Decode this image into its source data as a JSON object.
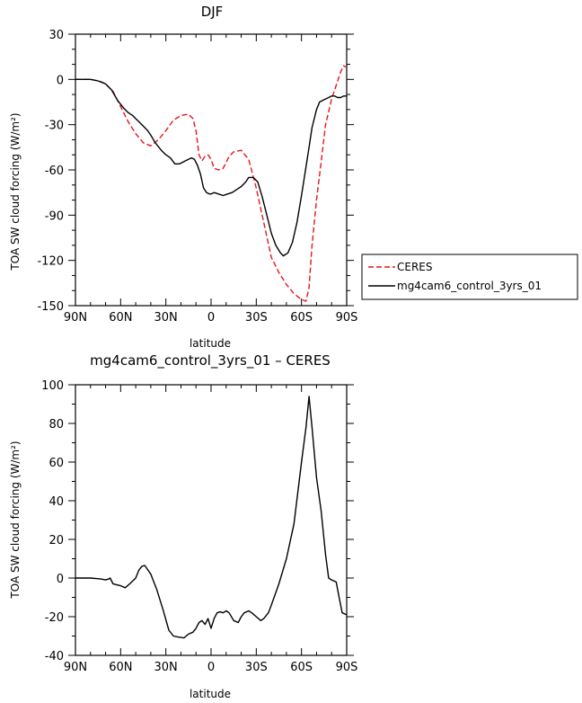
{
  "chart_data": [
    {
      "type": "line",
      "title": "DJF",
      "xlabel": "latitude",
      "ylabel": "TOA SW cloud forcing (W/m²)",
      "xlim": [
        90,
        -90
      ],
      "ylim": [
        -150,
        30
      ],
      "xticks": [
        {
          "value": 90,
          "label": "90N"
        },
        {
          "value": 60,
          "label": "60N"
        },
        {
          "value": 30,
          "label": "30N"
        },
        {
          "value": 0,
          "label": "0"
        },
        {
          "value": -30,
          "label": "30S"
        },
        {
          "value": -60,
          "label": "60S"
        },
        {
          "value": -90,
          "label": "90S"
        }
      ],
      "yticks": [
        {
          "value": 30,
          "label": "30"
        },
        {
          "value": 0,
          "label": "0"
        },
        {
          "value": -30,
          "label": "-30"
        },
        {
          "value": -60,
          "label": "-60"
        },
        {
          "value": -90,
          "label": "-90"
        },
        {
          "value": -120,
          "label": "-120"
        },
        {
          "value": -150,
          "label": "-150"
        }
      ],
      "legend": {
        "placement": "right",
        "items": [
          "CERES",
          "mg4cam6_control_3yrs_01"
        ]
      },
      "series": [
        {
          "name": "CERES",
          "color": "#e8141c",
          "dash": true,
          "x": [
            90,
            85,
            80,
            75,
            70,
            65,
            60,
            55,
            50,
            45,
            40,
            35,
            30,
            25,
            20,
            15,
            12,
            10,
            8,
            6,
            4,
            2,
            0,
            -2,
            -5,
            -8,
            -10,
            -12,
            -15,
            -20,
            -25,
            -30,
            -35,
            -40,
            -45,
            -50,
            -55,
            -60,
            -63,
            -65,
            -67,
            -70,
            -73,
            -76,
            -80,
            -83,
            -86,
            -88,
            -90
          ],
          "values": [
            0,
            0,
            0,
            -1,
            -3,
            -8,
            -18,
            -28,
            -36,
            -42,
            -44,
            -40,
            -34,
            -27,
            -24,
            -23,
            -26,
            -34,
            -50,
            -54,
            -51,
            -50,
            -53,
            -59,
            -60,
            -59,
            -55,
            -51,
            -48,
            -47,
            -53,
            -72,
            -95,
            -118,
            -128,
            -136,
            -142,
            -146,
            -147,
            -138,
            -110,
            -80,
            -55,
            -30,
            -13,
            -4,
            5,
            9,
            8
          ]
        },
        {
          "name": "mg4cam6_control_3yrs_01",
          "color": "#000000",
          "dash": false,
          "x": [
            90,
            85,
            80,
            75,
            72,
            70,
            66,
            62,
            58,
            55,
            52,
            50,
            48,
            45,
            42,
            40,
            37,
            33,
            30,
            27,
            24,
            21,
            19,
            17,
            15,
            13,
            11,
            9,
            7,
            5,
            3,
            1,
            0,
            -2,
            -5,
            -8,
            -11,
            -14,
            -17,
            -20,
            -23,
            -25,
            -28,
            -31,
            -34,
            -37,
            -40,
            -43,
            -46,
            -48,
            -51,
            -54,
            -57,
            -60,
            -63,
            -65,
            -67,
            -70,
            -72,
            -74,
            -76,
            -78,
            -80,
            -82,
            -84,
            -86,
            -88,
            -90
          ],
          "values": [
            0,
            0,
            0,
            -1,
            -2,
            -3,
            -7,
            -14,
            -19,
            -22,
            -24,
            -26,
            -28,
            -31,
            -34,
            -37,
            -42,
            -47,
            -50,
            -52,
            -56,
            -56,
            -55,
            -54,
            -53,
            -52,
            -53,
            -57,
            -63,
            -72,
            -75,
            -76,
            -76,
            -75,
            -76,
            -77,
            -76,
            -75,
            -73,
            -71,
            -68,
            -65,
            -65,
            -68,
            -78,
            -90,
            -102,
            -110,
            -115,
            -117,
            -115,
            -108,
            -95,
            -77,
            -58,
            -45,
            -32,
            -20,
            -15,
            -14,
            -13,
            -12,
            -11,
            -11,
            -12,
            -12,
            -11,
            -11
          ]
        }
      ]
    },
    {
      "type": "line",
      "title": "mg4cam6_control_3yrs_01 – CERES",
      "xlabel": "latitude",
      "ylabel": "TOA SW cloud forcing (W/m²)",
      "xlim": [
        90,
        -90
      ],
      "ylim": [
        -40,
        100
      ],
      "xticks": [
        {
          "value": 90,
          "label": "90N"
        },
        {
          "value": 60,
          "label": "60N"
        },
        {
          "value": 30,
          "label": "30N"
        },
        {
          "value": 0,
          "label": "0"
        },
        {
          "value": -30,
          "label": "30S"
        },
        {
          "value": -60,
          "label": "60S"
        },
        {
          "value": -90,
          "label": "90S"
        }
      ],
      "yticks": [
        {
          "value": 100,
          "label": "100"
        },
        {
          "value": 80,
          "label": "80"
        },
        {
          "value": 60,
          "label": "60"
        },
        {
          "value": 40,
          "label": "40"
        },
        {
          "value": 20,
          "label": "20"
        },
        {
          "value": 0,
          "label": "0"
        },
        {
          "value": -20,
          "label": "-20"
        },
        {
          "value": -40,
          "label": "-40"
        }
      ],
      "series": [
        {
          "name": "",
          "color": "#000000",
          "dash": false,
          "x": [
            90,
            80,
            73,
            70,
            68,
            67,
            65,
            60,
            57,
            54,
            50,
            48,
            46,
            44,
            40,
            36,
            32,
            28,
            25,
            22,
            18,
            15,
            12,
            10,
            8,
            6,
            4,
            2,
            0,
            -2,
            -4,
            -6,
            -8,
            -10,
            -12,
            -15,
            -18,
            -20,
            -22,
            -25,
            -27,
            -30,
            -33,
            -35,
            -38,
            -40,
            -45,
            -50,
            -55,
            -60,
            -63,
            -65,
            -67,
            -70,
            -73,
            -76,
            -78,
            -80,
            -83,
            -85,
            -87,
            -90
          ],
          "values": [
            0,
            0,
            -0.5,
            -1,
            -0.5,
            0,
            -3,
            -4,
            -5,
            -3,
            0,
            4,
            6,
            6.5,
            2,
            -6,
            -16,
            -27,
            -30,
            -30.5,
            -31,
            -29,
            -28,
            -26,
            -23,
            -22,
            -24,
            -21,
            -26,
            -21,
            -18,
            -17.5,
            -18,
            -17,
            -18,
            -22,
            -23,
            -20,
            -18,
            -17,
            -18,
            -20,
            -22,
            -21,
            -18,
            -14,
            -3,
            10,
            28,
            60,
            78,
            94,
            78,
            52,
            35,
            12,
            0,
            -1,
            -2,
            -10,
            -18,
            -19
          ]
        }
      ]
    }
  ]
}
